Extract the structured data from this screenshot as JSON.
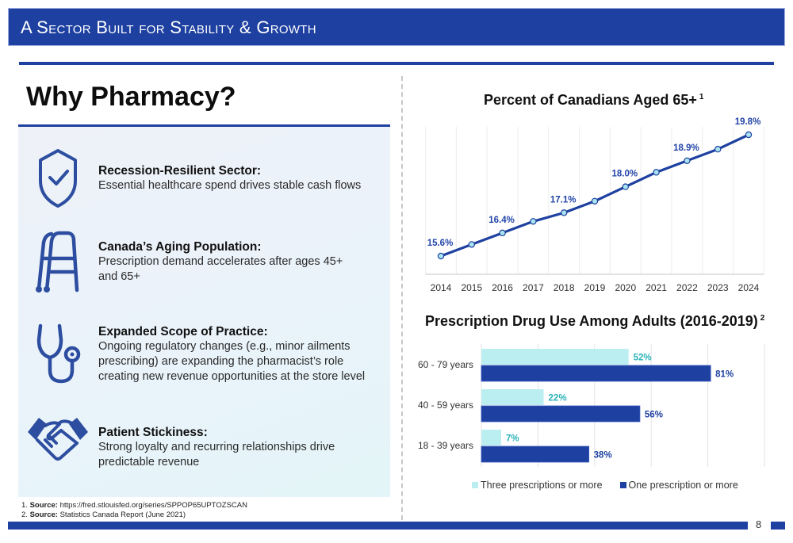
{
  "header": {
    "title": "A Sector Built for Stability & Growth"
  },
  "left": {
    "title": "Why Pharmacy?",
    "features": [
      {
        "icon": "shield-check-icon",
        "heading": "Recession-Resilient Sector:",
        "lines": [
          "Essential healthcare spend drives stable cash flows"
        ]
      },
      {
        "icon": "walker-icon",
        "heading": "Canada’s Aging Population:",
        "lines": [
          "Prescription demand accelerates after ages 45+",
          "and 65+"
        ]
      },
      {
        "icon": "stethoscope-icon",
        "heading": "Expanded Scope of Practice:",
        "lines": [
          "Ongoing regulatory changes (e.g., minor ailments",
          "prescribing) are expanding the pharmacist’s role",
          "creating new revenue opportunities at the store level"
        ]
      },
      {
        "icon": "handshake-icon",
        "heading": "Patient Stickiness:",
        "lines": [
          "Strong loyalty and recurring relationships drive",
          "predictable revenue"
        ]
      }
    ]
  },
  "footnotes": [
    {
      "num": "1.",
      "label": "Source:",
      "text": "https://fred.stlouisfed.org/series/SPPOP65UPTOZSCAN"
    },
    {
      "num": "2.",
      "label": "Source:",
      "text": "Statistics Canada Report (June 2021)"
    }
  ],
  "page_number": "8",
  "colors": {
    "brand_blue": "#1e40a0",
    "light_teal": "#bbeef0",
    "teal_label": "#2ab3b8",
    "marker_fill": "#a9e4f0"
  },
  "chart_data": [
    {
      "type": "line",
      "title": "Percent of Canadians Aged 65+",
      "title_superscript": "1",
      "x": [
        "2014",
        "2015",
        "2016",
        "2017",
        "2018",
        "2019",
        "2020",
        "2021",
        "2022",
        "2023",
        "2024"
      ],
      "series": [
        {
          "name": "Percent aged 65+",
          "values": [
            15.6,
            16.0,
            16.4,
            16.8,
            17.1,
            17.5,
            18.0,
            18.5,
            18.9,
            19.3,
            19.8
          ]
        }
      ],
      "data_labels": [
        {
          "x": "2014",
          "text": "15.6%"
        },
        {
          "x": "2016",
          "text": "16.4%"
        },
        {
          "x": "2018",
          "text": "17.1%"
        },
        {
          "x": "2020",
          "text": "18.0%"
        },
        {
          "x": "2022",
          "text": "18.9%"
        },
        {
          "x": "2024",
          "text": "19.8%"
        }
      ],
      "xlabel": "",
      "ylabel": "",
      "ylim": [
        15.0,
        20.0
      ],
      "grid": "vertical",
      "legend": "none"
    },
    {
      "type": "bar",
      "orientation": "horizontal",
      "title": "Prescription Drug Use Among Adults (2016-2019)",
      "title_superscript": "2",
      "categories": [
        "60 - 79 years",
        "40 - 59 years",
        "18 - 39 years"
      ],
      "series": [
        {
          "name": "Three prescriptions or more",
          "values": [
            52,
            22,
            7
          ],
          "labels": [
            "52%",
            "22%",
            "7%"
          ]
        },
        {
          "name": "One prescription or more",
          "values": [
            81,
            56,
            38
          ],
          "labels": [
            "81%",
            "56%",
            "38%"
          ]
        }
      ],
      "xlim": [
        0,
        100
      ],
      "grid": "vertical",
      "legend": "bottom"
    }
  ]
}
